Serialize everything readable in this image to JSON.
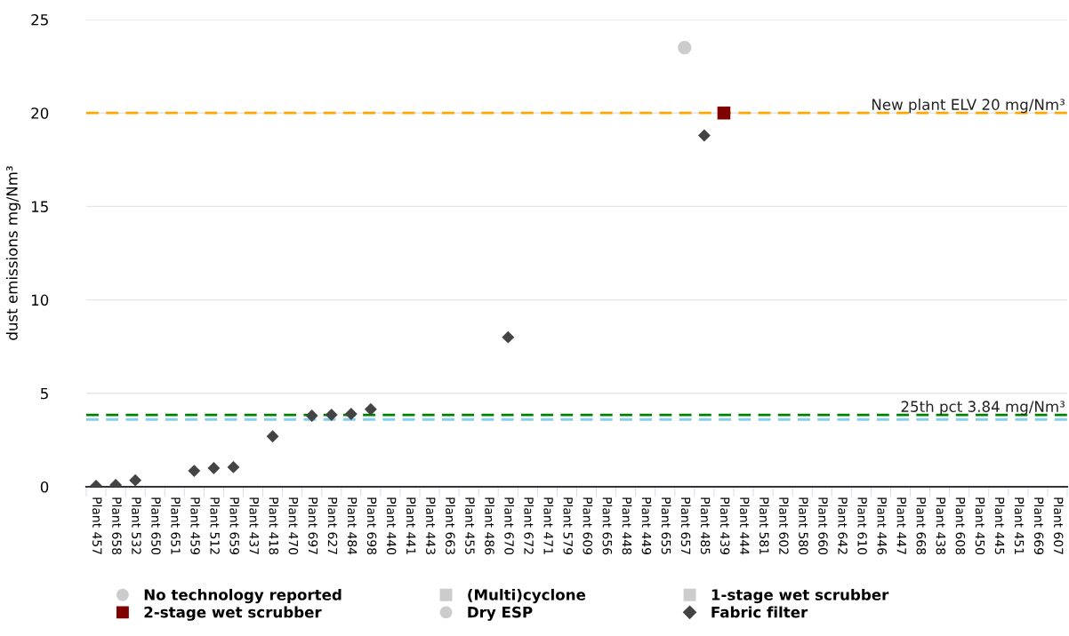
{
  "chart_data": {
    "type": "scatter",
    "ylabel": "dust emissions mg/Nm³",
    "categories": [
      "Plant 457",
      "Plant 658",
      "Plant 532",
      "Plant 650",
      "Plant 651",
      "Plant 459",
      "Plant 512",
      "Plant 659",
      "Plant 437",
      "Plant 418",
      "Plant 470",
      "Plant 697",
      "Plant 627",
      "Plant 484",
      "Plant 698",
      "Plant 440",
      "Plant 441",
      "Plant 443",
      "Plant 663",
      "Plant 455",
      "Plant 486",
      "Plant 670",
      "Plant 672",
      "Plant 471",
      "Plant 579",
      "Plant 609",
      "Plant 656",
      "Plant 448",
      "Plant 449",
      "Plant 655",
      "Plant 657",
      "Plant 485",
      "Plant 439",
      "Plant 444",
      "Plant 581",
      "Plant 602",
      "Plant 580",
      "Plant 660",
      "Plant 642",
      "Plant 610",
      "Plant 446",
      "Plant 447",
      "Plant 668",
      "Plant 438",
      "Plant 608",
      "Plant 450",
      "Plant 445",
      "Plant 451",
      "Plant 669",
      "Plant 607"
    ],
    "series": [
      {
        "name": "No technology reported",
        "color": "#cccccc",
        "marker": "circle",
        "values": [
          null,
          null,
          null,
          null,
          null,
          null,
          null,
          null,
          null,
          null,
          null,
          null,
          null,
          null,
          null,
          null,
          null,
          null,
          null,
          null,
          null,
          null,
          null,
          null,
          null,
          null,
          null,
          null,
          null,
          null,
          23.5,
          null,
          null,
          null,
          null,
          null,
          null,
          null,
          null,
          null,
          null,
          null,
          null,
          null,
          null,
          null,
          null,
          null,
          null,
          null
        ]
      },
      {
        "name": "(Multi)cyclone",
        "color": "#cccccc",
        "marker": "square",
        "values": [
          null,
          null,
          null,
          null,
          null,
          null,
          null,
          null,
          null,
          null,
          null,
          null,
          null,
          null,
          null,
          null,
          null,
          null,
          null,
          null,
          null,
          null,
          null,
          null,
          null,
          null,
          null,
          null,
          null,
          null,
          null,
          null,
          null,
          null,
          null,
          null,
          null,
          null,
          null,
          null,
          null,
          null,
          null,
          null,
          null,
          null,
          null,
          null,
          null,
          null
        ]
      },
      {
        "name": "1-stage wet scrubber",
        "color": "#cccccc",
        "marker": "square",
        "values": [
          null,
          null,
          null,
          null,
          null,
          null,
          null,
          null,
          null,
          null,
          null,
          null,
          null,
          null,
          null,
          null,
          null,
          null,
          null,
          null,
          null,
          null,
          null,
          null,
          null,
          null,
          null,
          null,
          null,
          null,
          null,
          null,
          null,
          null,
          null,
          null,
          null,
          null,
          null,
          null,
          null,
          null,
          null,
          null,
          null,
          null,
          null,
          null,
          null,
          null
        ]
      },
      {
        "name": "2-stage wet scrubber",
        "color": "#800000",
        "marker": "square",
        "values": [
          null,
          null,
          null,
          null,
          null,
          null,
          null,
          null,
          null,
          null,
          null,
          null,
          null,
          null,
          null,
          null,
          null,
          null,
          null,
          null,
          null,
          null,
          null,
          null,
          null,
          null,
          null,
          null,
          null,
          null,
          null,
          null,
          20.0,
          null,
          null,
          null,
          null,
          null,
          null,
          null,
          null,
          null,
          null,
          null,
          null,
          null,
          null,
          null,
          null,
          null
        ]
      },
      {
        "name": "Dry ESP",
        "color": "#cccccc",
        "marker": "circle",
        "values": [
          null,
          null,
          null,
          null,
          null,
          null,
          null,
          null,
          null,
          null,
          null,
          null,
          null,
          null,
          null,
          null,
          null,
          null,
          null,
          null,
          null,
          null,
          null,
          null,
          null,
          null,
          null,
          null,
          null,
          null,
          null,
          null,
          null,
          null,
          null,
          null,
          null,
          null,
          null,
          null,
          null,
          null,
          null,
          null,
          null,
          null,
          null,
          null,
          null,
          null
        ]
      },
      {
        "name": "Fabric filter",
        "color": "#444444",
        "marker": "diamond",
        "values": [
          0.05,
          0.1,
          0.35,
          null,
          null,
          0.85,
          1.0,
          1.05,
          null,
          2.7,
          null,
          3.8,
          3.85,
          3.9,
          4.15,
          null,
          null,
          null,
          null,
          null,
          null,
          8.0,
          null,
          null,
          null,
          null,
          null,
          null,
          null,
          null,
          null,
          18.8,
          null,
          null,
          null,
          null,
          null,
          null,
          null,
          null,
          null,
          null,
          null,
          null,
          null,
          null,
          null,
          null,
          null,
          null
        ]
      }
    ],
    "ylim": [
      0,
      25
    ],
    "yticks": [
      0,
      5,
      10,
      15,
      20,
      25
    ],
    "grid": "y",
    "legend": "bottom",
    "ref_lines": [
      {
        "axis": "y",
        "value": 20,
        "label": "New plant ELV 20 mg/Nm³",
        "color": "#ffa500",
        "line_style": "dashed"
      },
      {
        "axis": "y",
        "value": 3.84,
        "label": "25th pct 3.84 mg/Nm³",
        "color": "#008000",
        "line_style": "dashed"
      },
      {
        "axis": "y",
        "value": 3.6,
        "color": "#87ceeb",
        "line_style": "dashed"
      }
    ]
  }
}
